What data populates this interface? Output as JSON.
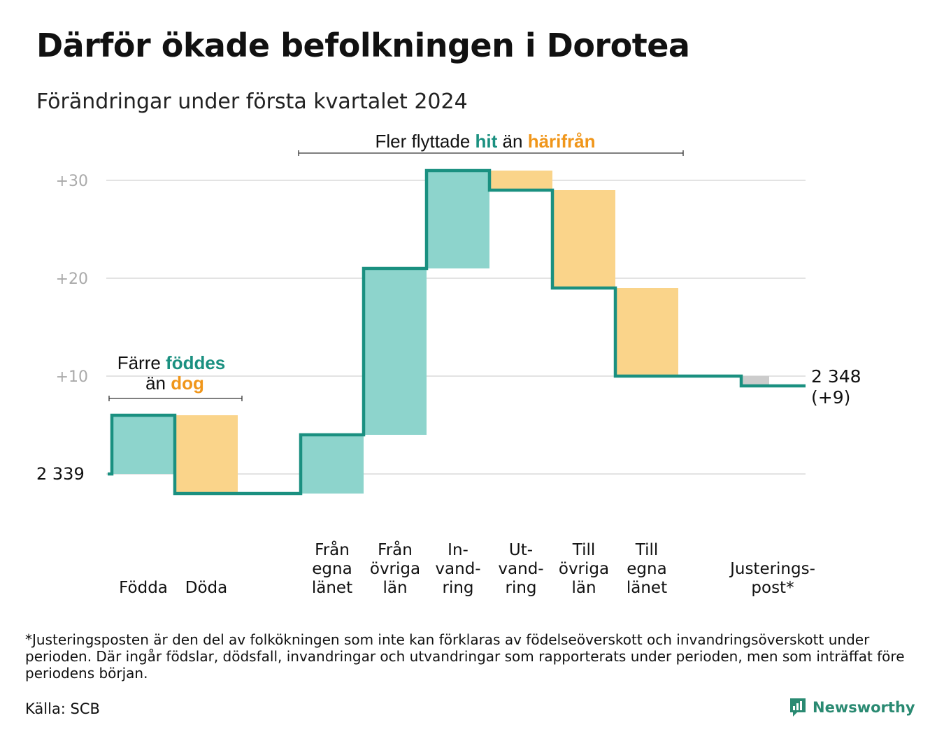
{
  "title": "Därför ökade befolkningen i Dorotea",
  "subtitle": "Förändringar under första kvartalet 2024",
  "annotations": {
    "births_deaths": {
      "pre": "Färre",
      "hl1": "föddes",
      "pre2": "än",
      "hl2": "dog"
    },
    "migration": {
      "pre": "Fler flyttade",
      "hl1": "hit",
      "mid": "än",
      "hl2": "härifrån"
    }
  },
  "end_label": {
    "value": "2 348",
    "change": "(+9)"
  },
  "colors": {
    "increase": "#8dd4cc",
    "decrease": "#fad48a",
    "adjustment": "#cccccc",
    "line": "#1a9080",
    "hl_teal": "#1a9080",
    "hl_orange": "#f0961a",
    "grid": "#e3e3e3"
  },
  "chart_data": {
    "type": "waterfall",
    "base_value": 2339,
    "base_label": "2 339",
    "y_ticks": [
      "+30",
      "+20",
      "+10"
    ],
    "ylim": [
      -3,
      32
    ],
    "steps": [
      {
        "label": [
          "Födda"
        ],
        "value": 6,
        "kind": "increase"
      },
      {
        "label": [
          "Döda"
        ],
        "value": -8,
        "kind": "decrease"
      },
      {
        "label": [],
        "value": 0,
        "kind": "spacer"
      },
      {
        "label": [
          "Från",
          "egna",
          "länet"
        ],
        "value": 6,
        "kind": "increase"
      },
      {
        "label": [
          "Från",
          "övriga",
          "län"
        ],
        "value": 17,
        "kind": "increase"
      },
      {
        "label": [
          "In-",
          "vand-",
          "ring"
        ],
        "value": 10,
        "kind": "increase"
      },
      {
        "label": [
          "Ut-",
          "vand-",
          "ring"
        ],
        "value": -2,
        "kind": "decrease"
      },
      {
        "label": [
          "Till",
          "övriga",
          "län"
        ],
        "value": -10,
        "kind": "decrease"
      },
      {
        "label": [
          "Till",
          "egna",
          "länet"
        ],
        "value": -9,
        "kind": "decrease"
      },
      {
        "label": [],
        "value": 0,
        "kind": "spacer"
      },
      {
        "label": [
          "Justerings-",
          "post*"
        ],
        "value": -1,
        "kind": "adjustment"
      }
    ],
    "end_value": 2348,
    "change": 9
  },
  "footnote": "*Justeringsposten är den del av folkökningen som inte kan förklaras av födelseöverskott och invandringsöverskott under perioden. Där ingår födslar, dödsfall, invandringar och utvandringar som rapporterats under perioden, men som inträffat före periodens början.",
  "source": "Källa: SCB",
  "brand": "Newsworthy"
}
